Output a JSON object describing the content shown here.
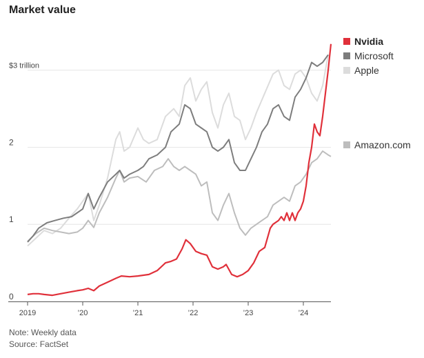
{
  "title": "Market value",
  "note": "Note: Weekly data",
  "source": "Source: FactSet",
  "chart_data": {
    "type": "line",
    "title": "Market value",
    "y_unit": "trillion US dollars",
    "ylim": [
      0,
      3.4
    ],
    "y_ticks": [
      {
        "value": 0,
        "label": "0"
      },
      {
        "value": 1,
        "label": "1"
      },
      {
        "value": 2,
        "label": "2"
      },
      {
        "value": 3,
        "label": "$3 trillion"
      }
    ],
    "x_range": [
      2019.0,
      2024.5
    ],
    "x_ticks": [
      {
        "value": 2019,
        "label": "2019"
      },
      {
        "value": 2020,
        "label": "’20"
      },
      {
        "value": 2021,
        "label": "’21"
      },
      {
        "value": 2022,
        "label": "’22"
      },
      {
        "value": 2023,
        "label": "’23"
      },
      {
        "value": 2024,
        "label": "’24"
      }
    ],
    "grid": "horizontal",
    "legend_position": "right",
    "series": [
      {
        "name": "Apple",
        "color": "#dcdcdc",
        "width": 2,
        "points": [
          [
            2019.0,
            0.72
          ],
          [
            2019.15,
            0.82
          ],
          [
            2019.3,
            0.92
          ],
          [
            2019.45,
            0.88
          ],
          [
            2019.6,
            0.95
          ],
          [
            2019.75,
            1.08
          ],
          [
            2019.9,
            1.2
          ],
          [
            2020.0,
            1.3
          ],
          [
            2020.1,
            1.4
          ],
          [
            2020.2,
            1.05
          ],
          [
            2020.3,
            1.25
          ],
          [
            2020.45,
            1.6
          ],
          [
            2020.6,
            2.1
          ],
          [
            2020.67,
            2.2
          ],
          [
            2020.75,
            1.95
          ],
          [
            2020.85,
            2.0
          ],
          [
            2021.0,
            2.25
          ],
          [
            2021.1,
            2.1
          ],
          [
            2021.2,
            2.05
          ],
          [
            2021.35,
            2.1
          ],
          [
            2021.5,
            2.4
          ],
          [
            2021.65,
            2.5
          ],
          [
            2021.75,
            2.4
          ],
          [
            2021.85,
            2.8
          ],
          [
            2021.95,
            2.9
          ],
          [
            2022.05,
            2.6
          ],
          [
            2022.15,
            2.75
          ],
          [
            2022.25,
            2.85
          ],
          [
            2022.35,
            2.45
          ],
          [
            2022.45,
            2.25
          ],
          [
            2022.55,
            2.55
          ],
          [
            2022.65,
            2.7
          ],
          [
            2022.75,
            2.4
          ],
          [
            2022.85,
            2.35
          ],
          [
            2022.95,
            2.1
          ],
          [
            2023.05,
            2.25
          ],
          [
            2023.15,
            2.45
          ],
          [
            2023.3,
            2.7
          ],
          [
            2023.45,
            2.95
          ],
          [
            2023.55,
            3.0
          ],
          [
            2023.65,
            2.8
          ],
          [
            2023.75,
            2.75
          ],
          [
            2023.85,
            2.95
          ],
          [
            2023.95,
            3.0
          ],
          [
            2024.05,
            2.9
          ],
          [
            2024.15,
            2.7
          ],
          [
            2024.25,
            2.6
          ],
          [
            2024.35,
            2.8
          ],
          [
            2024.45,
            3.2
          ]
        ]
      },
      {
        "name": "Amazon.com",
        "color": "#bdbdbd",
        "width": 2,
        "points": [
          [
            2019.0,
            0.78
          ],
          [
            2019.15,
            0.88
          ],
          [
            2019.3,
            0.95
          ],
          [
            2019.45,
            0.92
          ],
          [
            2019.6,
            0.9
          ],
          [
            2019.75,
            0.88
          ],
          [
            2019.9,
            0.9
          ],
          [
            2020.0,
            0.95
          ],
          [
            2020.1,
            1.05
          ],
          [
            2020.2,
            0.96
          ],
          [
            2020.3,
            1.15
          ],
          [
            2020.45,
            1.35
          ],
          [
            2020.6,
            1.6
          ],
          [
            2020.67,
            1.7
          ],
          [
            2020.75,
            1.55
          ],
          [
            2020.85,
            1.6
          ],
          [
            2021.0,
            1.62
          ],
          [
            2021.15,
            1.55
          ],
          [
            2021.3,
            1.7
          ],
          [
            2021.45,
            1.75
          ],
          [
            2021.55,
            1.85
          ],
          [
            2021.65,
            1.75
          ],
          [
            2021.75,
            1.7
          ],
          [
            2021.85,
            1.75
          ],
          [
            2021.95,
            1.7
          ],
          [
            2022.05,
            1.65
          ],
          [
            2022.15,
            1.5
          ],
          [
            2022.25,
            1.55
          ],
          [
            2022.35,
            1.15
          ],
          [
            2022.45,
            1.05
          ],
          [
            2022.55,
            1.25
          ],
          [
            2022.65,
            1.4
          ],
          [
            2022.75,
            1.15
          ],
          [
            2022.85,
            0.95
          ],
          [
            2022.95,
            0.86
          ],
          [
            2023.05,
            0.95
          ],
          [
            2023.15,
            1.0
          ],
          [
            2023.25,
            1.05
          ],
          [
            2023.35,
            1.1
          ],
          [
            2023.45,
            1.25
          ],
          [
            2023.55,
            1.3
          ],
          [
            2023.65,
            1.35
          ],
          [
            2023.75,
            1.3
          ],
          [
            2023.85,
            1.5
          ],
          [
            2023.95,
            1.55
          ],
          [
            2024.05,
            1.65
          ],
          [
            2024.15,
            1.8
          ],
          [
            2024.25,
            1.85
          ],
          [
            2024.35,
            1.95
          ],
          [
            2024.45,
            1.9
          ],
          [
            2024.5,
            1.88
          ]
        ]
      },
      {
        "name": "Microsoft",
        "color": "#7d7d7d",
        "width": 2,
        "points": [
          [
            2019.0,
            0.77
          ],
          [
            2019.1,
            0.85
          ],
          [
            2019.2,
            0.95
          ],
          [
            2019.35,
            1.02
          ],
          [
            2019.5,
            1.05
          ],
          [
            2019.65,
            1.08
          ],
          [
            2019.8,
            1.1
          ],
          [
            2019.9,
            1.15
          ],
          [
            2020.0,
            1.2
          ],
          [
            2020.1,
            1.4
          ],
          [
            2020.2,
            1.2
          ],
          [
            2020.3,
            1.35
          ],
          [
            2020.45,
            1.55
          ],
          [
            2020.6,
            1.65
          ],
          [
            2020.67,
            1.7
          ],
          [
            2020.75,
            1.6
          ],
          [
            2020.85,
            1.65
          ],
          [
            2021.0,
            1.7
          ],
          [
            2021.1,
            1.75
          ],
          [
            2021.2,
            1.85
          ],
          [
            2021.35,
            1.9
          ],
          [
            2021.5,
            2.0
          ],
          [
            2021.6,
            2.2
          ],
          [
            2021.75,
            2.3
          ],
          [
            2021.85,
            2.55
          ],
          [
            2021.95,
            2.5
          ],
          [
            2022.05,
            2.3
          ],
          [
            2022.15,
            2.25
          ],
          [
            2022.25,
            2.2
          ],
          [
            2022.35,
            2.0
          ],
          [
            2022.45,
            1.95
          ],
          [
            2022.55,
            2.0
          ],
          [
            2022.65,
            2.1
          ],
          [
            2022.75,
            1.8
          ],
          [
            2022.85,
            1.7
          ],
          [
            2022.95,
            1.7
          ],
          [
            2023.05,
            1.85
          ],
          [
            2023.15,
            2.0
          ],
          [
            2023.25,
            2.2
          ],
          [
            2023.35,
            2.3
          ],
          [
            2023.45,
            2.5
          ],
          [
            2023.55,
            2.55
          ],
          [
            2023.65,
            2.4
          ],
          [
            2023.75,
            2.35
          ],
          [
            2023.85,
            2.65
          ],
          [
            2023.95,
            2.75
          ],
          [
            2024.05,
            2.9
          ],
          [
            2024.15,
            3.1
          ],
          [
            2024.25,
            3.05
          ],
          [
            2024.35,
            3.1
          ],
          [
            2024.45,
            3.2
          ]
        ]
      },
      {
        "name": "Nvidia",
        "color": "#e0303a",
        "width": 2.2,
        "points": [
          [
            2019.0,
            0.09
          ],
          [
            2019.1,
            0.1
          ],
          [
            2019.2,
            0.1
          ],
          [
            2019.3,
            0.09
          ],
          [
            2019.45,
            0.08
          ],
          [
            2019.6,
            0.1
          ],
          [
            2019.75,
            0.12
          ],
          [
            2019.9,
            0.14
          ],
          [
            2020.0,
            0.15
          ],
          [
            2020.1,
            0.17
          ],
          [
            2020.2,
            0.14
          ],
          [
            2020.3,
            0.2
          ],
          [
            2020.45,
            0.25
          ],
          [
            2020.6,
            0.3
          ],
          [
            2020.7,
            0.33
          ],
          [
            2020.85,
            0.32
          ],
          [
            2021.0,
            0.33
          ],
          [
            2021.1,
            0.34
          ],
          [
            2021.2,
            0.35
          ],
          [
            2021.35,
            0.4
          ],
          [
            2021.5,
            0.5
          ],
          [
            2021.6,
            0.52
          ],
          [
            2021.7,
            0.55
          ],
          [
            2021.8,
            0.68
          ],
          [
            2021.87,
            0.8
          ],
          [
            2021.95,
            0.75
          ],
          [
            2022.05,
            0.65
          ],
          [
            2022.15,
            0.62
          ],
          [
            2022.25,
            0.6
          ],
          [
            2022.35,
            0.45
          ],
          [
            2022.45,
            0.42
          ],
          [
            2022.55,
            0.45
          ],
          [
            2022.6,
            0.48
          ],
          [
            2022.7,
            0.35
          ],
          [
            2022.8,
            0.32
          ],
          [
            2022.9,
            0.35
          ],
          [
            2023.0,
            0.4
          ],
          [
            2023.1,
            0.5
          ],
          [
            2023.2,
            0.65
          ],
          [
            2023.3,
            0.7
          ],
          [
            2023.4,
            0.95
          ],
          [
            2023.45,
            1.0
          ],
          [
            2023.55,
            1.05
          ],
          [
            2023.6,
            1.1
          ],
          [
            2023.65,
            1.05
          ],
          [
            2023.7,
            1.15
          ],
          [
            2023.75,
            1.05
          ],
          [
            2023.8,
            1.15
          ],
          [
            2023.85,
            1.05
          ],
          [
            2023.9,
            1.15
          ],
          [
            2023.95,
            1.2
          ],
          [
            2024.0,
            1.3
          ],
          [
            2024.05,
            1.5
          ],
          [
            2024.1,
            1.8
          ],
          [
            2024.15,
            2.0
          ],
          [
            2024.2,
            2.3
          ],
          [
            2024.25,
            2.2
          ],
          [
            2024.3,
            2.15
          ],
          [
            2024.35,
            2.4
          ],
          [
            2024.4,
            2.7
          ],
          [
            2024.45,
            3.0
          ],
          [
            2024.5,
            3.34
          ]
        ]
      }
    ]
  },
  "legend": [
    {
      "label": "Nvidia",
      "color": "#e0303a",
      "bold": true
    },
    {
      "label": "Microsoft",
      "color": "#7d7d7d",
      "bold": false
    },
    {
      "label": "Apple",
      "color": "#dcdcdc",
      "bold": false
    },
    {
      "label": "Amazon.com",
      "color": "#bdbdbd",
      "bold": false
    }
  ]
}
